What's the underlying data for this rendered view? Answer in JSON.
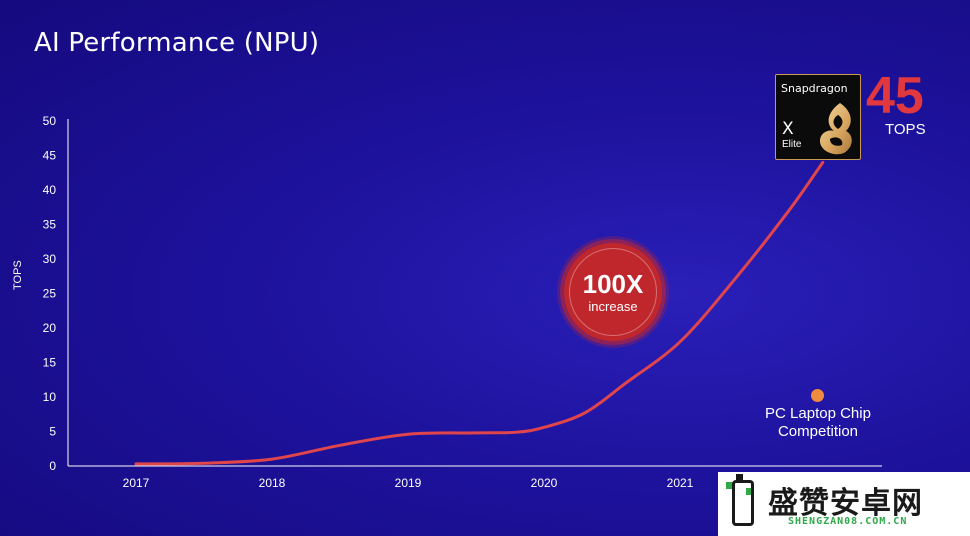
{
  "chart_data": {
    "type": "line",
    "title": "AI Performance (NPU)",
    "ylabel": "TOPS",
    "xlabel": "",
    "ylim": [
      0,
      50
    ],
    "y_ticks": [
      "0",
      "5",
      "10",
      "15",
      "20",
      "25",
      "30",
      "35",
      "40",
      "45",
      "50"
    ],
    "x_ticks": [
      "2017",
      "2018",
      "2019",
      "2020",
      "2021"
    ],
    "grid": false,
    "series": [
      {
        "color": "#e0454b",
        "points": [
          {
            "x": 2017.0,
            "y": 0.3
          },
          {
            "x": 2017.5,
            "y": 0.4
          },
          {
            "x": 2018.0,
            "y": 1.0
          },
          {
            "x": 2018.5,
            "y": 3.0
          },
          {
            "x": 2019.0,
            "y": 4.6
          },
          {
            "x": 2019.5,
            "y": 4.8
          },
          {
            "x": 2019.8,
            "y": 4.9
          },
          {
            "x": 2020.0,
            "y": 5.6
          },
          {
            "x": 2020.3,
            "y": 7.7
          },
          {
            "x": 2020.6,
            "y": 12.0
          },
          {
            "x": 2021.0,
            "y": 18.0
          },
          {
            "x": 2021.4,
            "y": 27.0
          },
          {
            "x": 2021.8,
            "y": 37.0
          },
          {
            "x": 2022.05,
            "y": 44.0
          }
        ]
      }
    ],
    "annotations": {
      "increase_badge": {
        "value": "100X",
        "label": "increase"
      },
      "chip": {
        "brand": "Snapdragon",
        "model": "X",
        "sub": "Elite"
      },
      "headline_value": "45",
      "headline_unit": "TOPS",
      "competition_label_line1": "PC Laptop Chip",
      "competition_label_line2": "Competition",
      "competition_y": 10
    }
  },
  "colors": {
    "background": "#1d129c",
    "line": "#e0454b",
    "headline": "#e0383e",
    "competition_dot": "#f08a3c"
  },
  "watermark": {
    "cn": "盛赞安卓网",
    "en": "SHENGZAN08.COM.CN"
  }
}
